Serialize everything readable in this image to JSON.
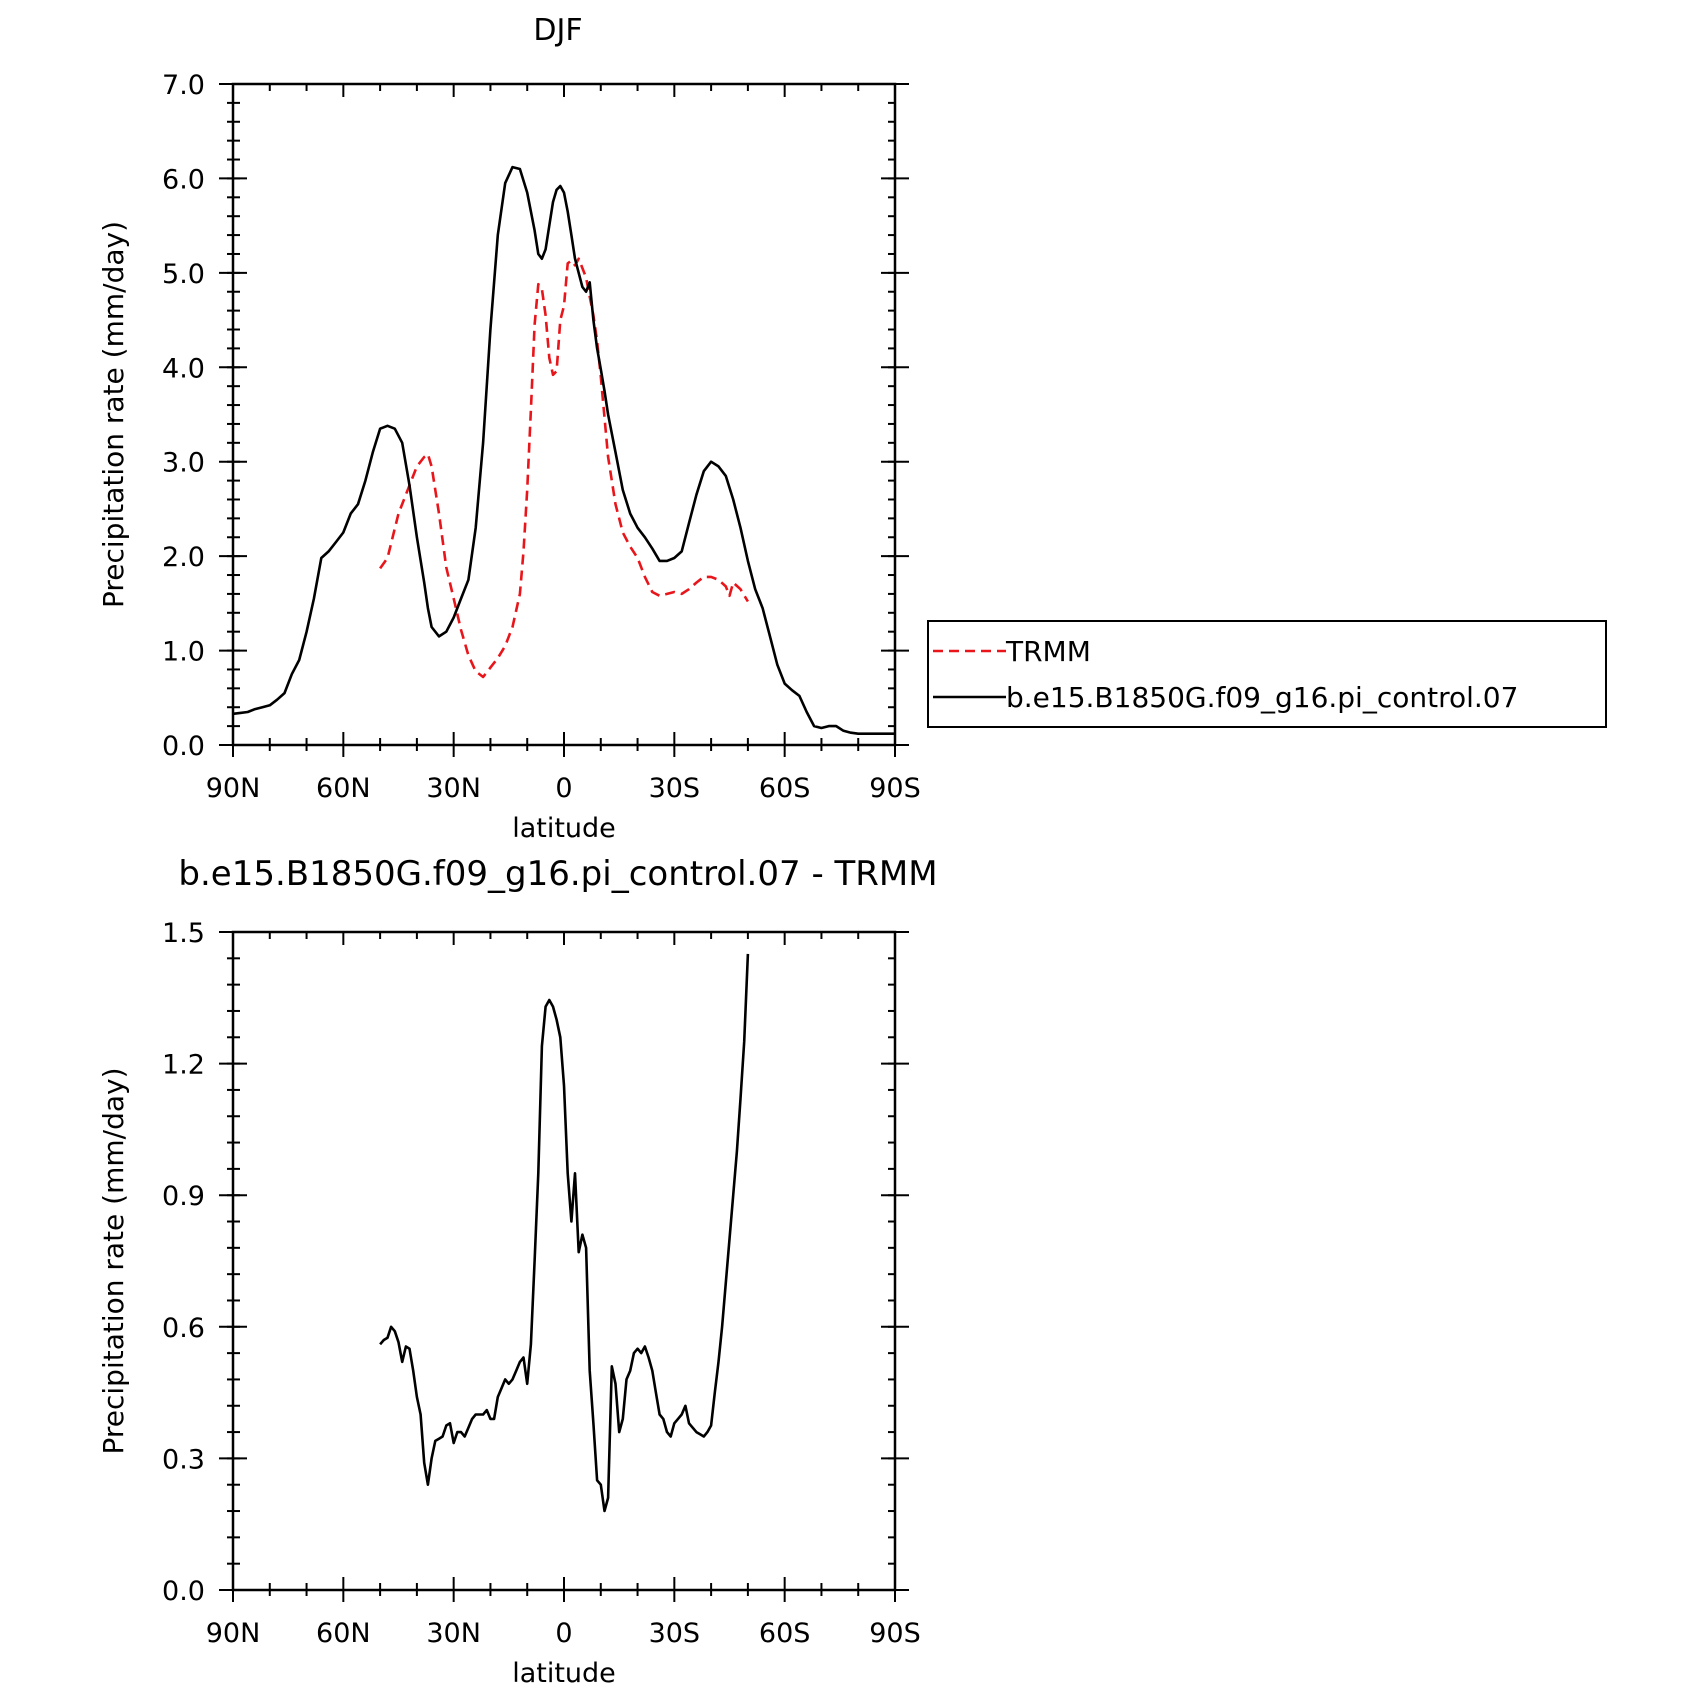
{
  "chart_data": [
    {
      "type": "line",
      "title": "DJF",
      "xlabel": "latitude",
      "ylabel": "Precipitation rate (mm/day)",
      "xlim": [
        90,
        -90
      ],
      "ylim": [
        0,
        7
      ],
      "x_tick_values": [
        90,
        60,
        30,
        0,
        -30,
        -60,
        -90
      ],
      "x_tick_labels": [
        "90N",
        "60N",
        "30N",
        "0",
        "30S",
        "60S",
        "90S"
      ],
      "y_tick_values": [
        0,
        1,
        2,
        3,
        4,
        5,
        6,
        7
      ],
      "y_tick_labels": [
        "0.0",
        "1.0",
        "2.0",
        "3.0",
        "4.0",
        "5.0",
        "6.0",
        "7.0"
      ],
      "grid": false,
      "legend_position": "right",
      "series": [
        {
          "name": "TRMM",
          "color": "#e8161b",
          "style": "dashed",
          "x": [
            50,
            48,
            45,
            42,
            40,
            38,
            37,
            36,
            34,
            32,
            30,
            28,
            26,
            24,
            22,
            20,
            18,
            16,
            14,
            12,
            11,
            10,
            9,
            8,
            7,
            6,
            5,
            4,
            3,
            2,
            1,
            0,
            -1,
            -2,
            -3,
            -4,
            -5,
            -6,
            -7,
            -8,
            -9,
            -10,
            -12,
            -14,
            -16,
            -18,
            -20,
            -22,
            -24,
            -26,
            -28,
            -30,
            -32,
            -34,
            -36,
            -38,
            -40,
            -42,
            -44,
            -45,
            -46,
            -48,
            -50
          ],
          "y": [
            1.87,
            1.98,
            2.45,
            2.75,
            2.95,
            3.05,
            3.08,
            2.95,
            2.45,
            1.88,
            1.55,
            1.22,
            0.95,
            0.78,
            0.72,
            0.82,
            0.92,
            1.05,
            1.25,
            1.6,
            2.05,
            2.7,
            3.55,
            4.45,
            4.88,
            4.83,
            4.55,
            4.1,
            3.92,
            3.96,
            4.5,
            4.65,
            5.1,
            5.13,
            5.08,
            5.15,
            5.05,
            4.95,
            4.75,
            4.55,
            4.28,
            3.9,
            3.05,
            2.55,
            2.25,
            2.1,
            1.98,
            1.78,
            1.62,
            1.58,
            1.6,
            1.62,
            1.6,
            1.65,
            1.72,
            1.78,
            1.78,
            1.75,
            1.68,
            1.58,
            1.72,
            1.65,
            1.52
          ]
        },
        {
          "name": "b.e15.B1850G.f09_g16.pi_control.07",
          "color": "#000000",
          "style": "solid",
          "x": [
            90,
            88,
            86,
            84,
            82,
            80,
            78,
            76,
            74,
            72,
            70,
            68,
            66,
            64,
            62,
            60,
            58,
            56,
            54,
            52,
            50,
            48,
            46,
            44,
            42,
            40,
            38,
            37,
            36,
            34,
            32,
            30,
            28,
            26,
            24,
            22,
            20,
            18,
            16,
            14,
            12,
            10,
            8,
            7,
            6,
            5,
            4,
            3,
            2,
            1,
            0,
            -1,
            -2,
            -3,
            -4,
            -5,
            -6,
            -7,
            -8,
            -9,
            -10,
            -11,
            -12,
            -13,
            -14,
            -16,
            -18,
            -20,
            -22,
            -24,
            -26,
            -28,
            -30,
            -32,
            -34,
            -36,
            -38,
            -40,
            -42,
            -44,
            -46,
            -48,
            -50,
            -52,
            -54,
            -56,
            -58,
            -60,
            -62,
            -64,
            -66,
            -68,
            -70,
            -72,
            -74,
            -76,
            -78,
            -80,
            -82,
            -84,
            -86,
            -88,
            -90
          ],
          "y": [
            0.33,
            0.34,
            0.35,
            0.38,
            0.4,
            0.42,
            0.48,
            0.55,
            0.75,
            0.9,
            1.2,
            1.55,
            1.98,
            2.05,
            2.15,
            2.25,
            2.45,
            2.55,
            2.8,
            3.1,
            3.35,
            3.38,
            3.35,
            3.2,
            2.75,
            2.2,
            1.72,
            1.45,
            1.25,
            1.15,
            1.2,
            1.35,
            1.55,
            1.75,
            2.3,
            3.2,
            4.4,
            5.4,
            5.95,
            6.12,
            6.1,
            5.85,
            5.45,
            5.2,
            5.15,
            5.25,
            5.5,
            5.75,
            5.88,
            5.92,
            5.85,
            5.65,
            5.4,
            5.15,
            5.0,
            4.85,
            4.8,
            4.9,
            4.5,
            4.2,
            3.98,
            3.75,
            3.5,
            3.3,
            3.1,
            2.7,
            2.45,
            2.3,
            2.2,
            2.08,
            1.95,
            1.95,
            1.98,
            2.05,
            2.35,
            2.65,
            2.9,
            3.0,
            2.95,
            2.85,
            2.6,
            2.3,
            1.95,
            1.65,
            1.45,
            1.15,
            0.85,
            0.65,
            0.58,
            0.52,
            0.35,
            0.2,
            0.18,
            0.2,
            0.2,
            0.15,
            0.13,
            0.12,
            0.12,
            0.12,
            0.12,
            0.12,
            0.12
          ]
        }
      ]
    },
    {
      "type": "line",
      "title": "b.e15.B1850G.f09_g16.pi_control.07 - TRMM",
      "xlabel": "latitude",
      "ylabel": "Precipitation rate (mm/day)",
      "xlim": [
        90,
        -90
      ],
      "ylim": [
        0,
        1.5
      ],
      "x_tick_values": [
        90,
        60,
        30,
        0,
        -30,
        -60,
        -90
      ],
      "x_tick_labels": [
        "90N",
        "60N",
        "30N",
        "0",
        "30S",
        "60S",
        "90S"
      ],
      "y_tick_values": [
        0,
        0.3,
        0.6,
        0.9,
        1.2,
        1.5
      ],
      "y_tick_labels": [
        "0.0",
        "0.3",
        "0.6",
        "0.9",
        "1.2",
        "1.5"
      ],
      "grid": false,
      "series": [
        {
          "color": "#000000",
          "style": "solid",
          "x": [
            50,
            49,
            48,
            47,
            46,
            45,
            44,
            43,
            42,
            41,
            40,
            39,
            38,
            37,
            36,
            35,
            34,
            33,
            32,
            31,
            30,
            29,
            28,
            27,
            26,
            25,
            24,
            23,
            22,
            21,
            20,
            19,
            18,
            17,
            16,
            15,
            14,
            13,
            12,
            11,
            10,
            9,
            8,
            7,
            6,
            5,
            4,
            3,
            2,
            1,
            0,
            -1,
            -2,
            -3,
            -4,
            -5,
            -6,
            -7,
            -8,
            -9,
            -10,
            -11,
            -12,
            -13,
            -14,
            -15,
            -16,
            -17,
            -18,
            -19,
            -20,
            -21,
            -22,
            -23,
            -24,
            -25,
            -26,
            -27,
            -28,
            -29,
            -30,
            -31,
            -32,
            -33,
            -34,
            -35,
            -36,
            -37,
            -38,
            -39,
            -40,
            -41,
            -42,
            -43,
            -44,
            -45,
            -46,
            -47,
            -48,
            -49,
            -50
          ],
          "y": [
            0.56,
            0.57,
            0.575,
            0.6,
            0.59,
            0.565,
            0.52,
            0.555,
            0.55,
            0.5,
            0.44,
            0.4,
            0.29,
            0.24,
            0.3,
            0.34,
            0.345,
            0.35,
            0.375,
            0.38,
            0.335,
            0.36,
            0.36,
            0.35,
            0.37,
            0.39,
            0.4,
            0.4,
            0.4,
            0.41,
            0.39,
            0.39,
            0.44,
            0.46,
            0.48,
            0.47,
            0.48,
            0.5,
            0.52,
            0.53,
            0.47,
            0.56,
            0.75,
            0.95,
            1.24,
            1.33,
            1.345,
            1.33,
            1.3,
            1.26,
            1.15,
            0.95,
            0.84,
            0.95,
            0.77,
            0.81,
            0.78,
            0.5,
            0.38,
            0.25,
            0.24,
            0.18,
            0.21,
            0.51,
            0.47,
            0.36,
            0.39,
            0.48,
            0.5,
            0.54,
            0.55,
            0.54,
            0.555,
            0.53,
            0.5,
            0.45,
            0.4,
            0.39,
            0.36,
            0.35,
            0.38,
            0.39,
            0.4,
            0.42,
            0.38,
            0.37,
            0.36,
            0.355,
            0.35,
            0.36,
            0.375,
            0.45,
            0.52,
            0.6,
            0.7,
            0.8,
            0.9,
            1.0,
            1.12,
            1.25,
            1.45
          ]
        }
      ]
    }
  ]
}
